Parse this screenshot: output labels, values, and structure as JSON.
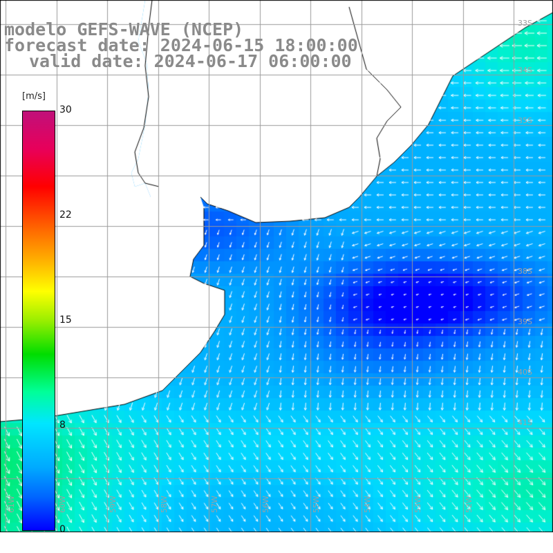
{
  "header": {
    "line1": "modelo GEFS-WAVE (NCEP)",
    "line2": "forecast date: 2024-06-15 18:00:00",
    "line3": "valid date: 2024-06-17 06:00:00"
  },
  "colorbar": {
    "unit": "[m/s]",
    "ticks": [
      "30",
      "22",
      "15",
      "8",
      "0"
    ],
    "colors": [
      "#0000ff",
      "#00aaff",
      "#00e6ff",
      "#00dd00",
      "#ffff00",
      "#ff0000",
      "#c0107a"
    ]
  },
  "map": {
    "lat_labels": [
      "33S",
      "34S",
      "35S",
      "36S",
      "37S",
      "38S",
      "39S",
      "40S",
      "41S"
    ],
    "lon_labels": [
      "61W",
      "60W",
      "59W",
      "58W",
      "57W",
      "56W",
      "55W",
      "54W",
      "53W",
      "52W"
    ],
    "land_color": "#ffffff",
    "grid_color": "#9a9a9a"
  }
}
